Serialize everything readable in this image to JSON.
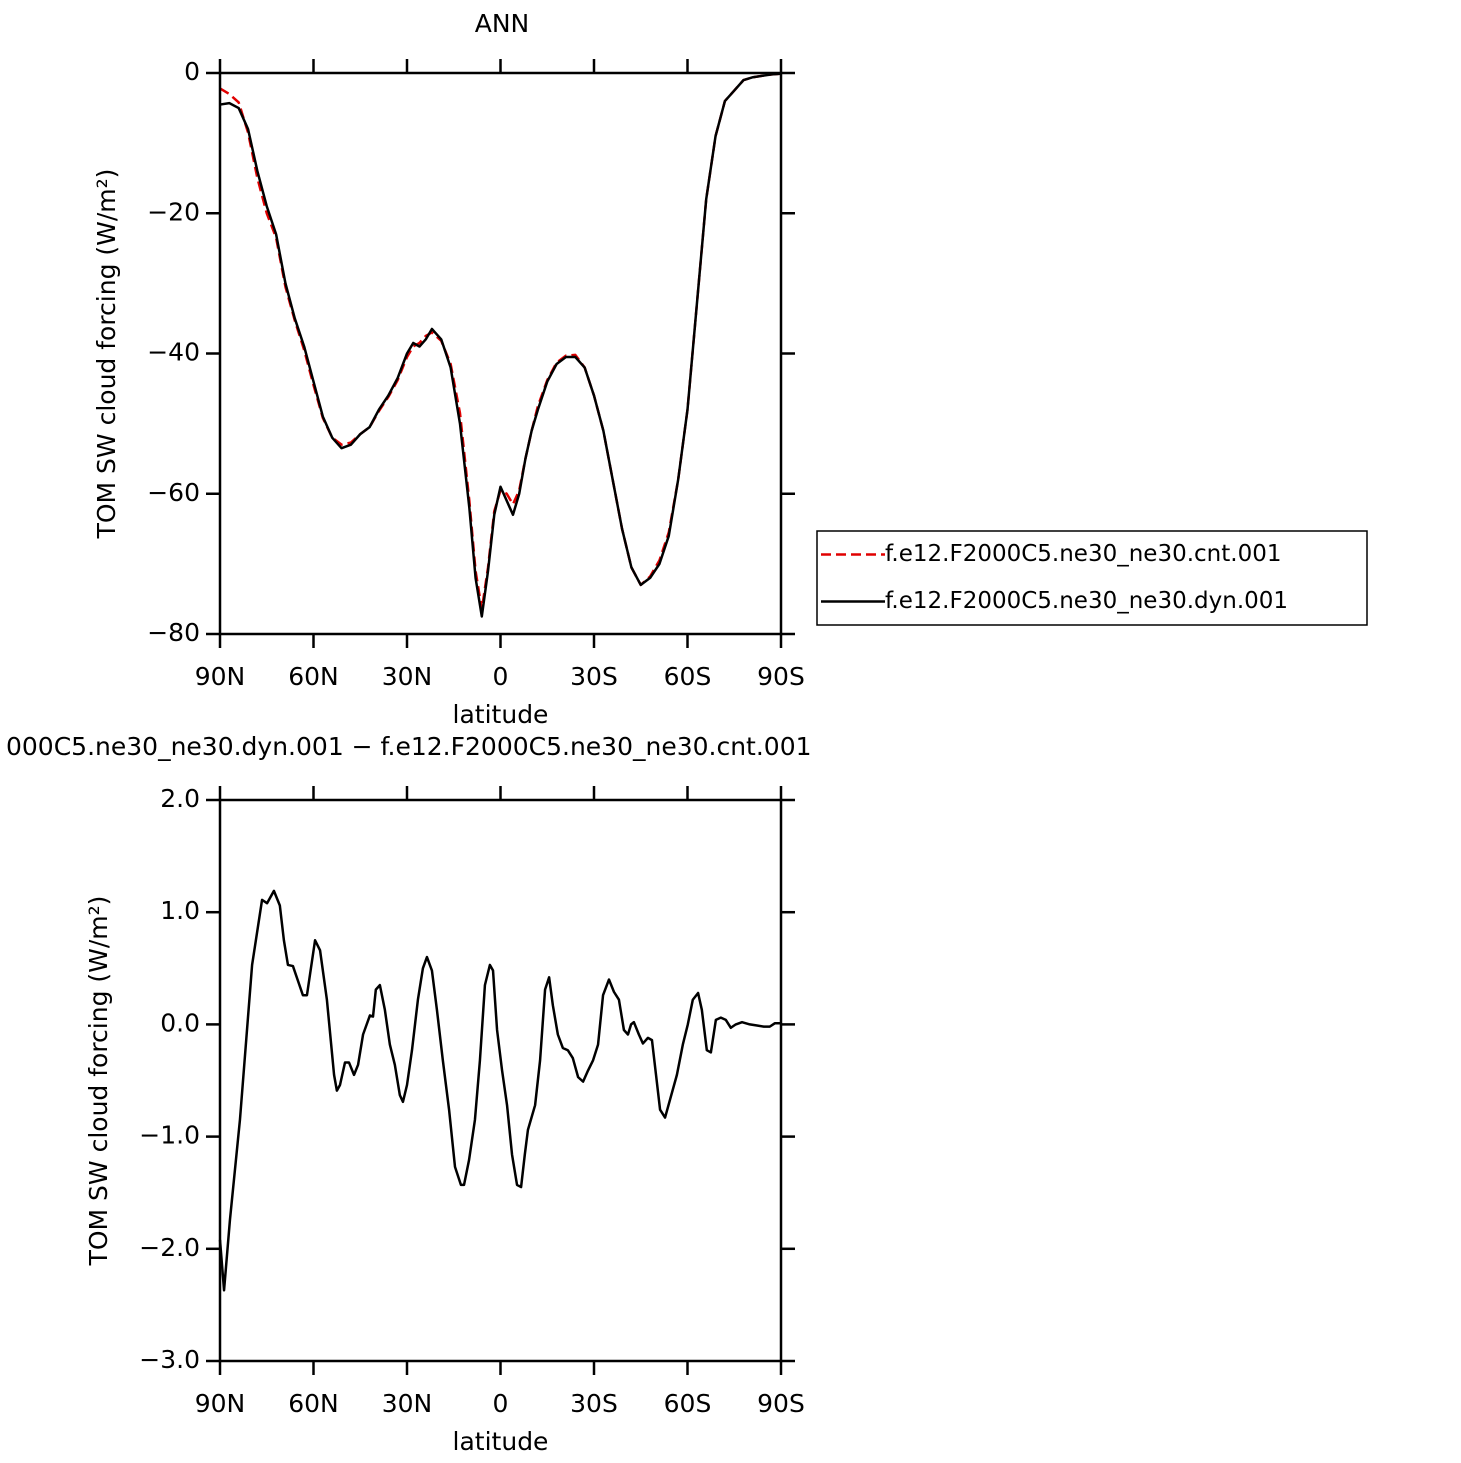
{
  "chart_data": [
    {
      "type": "line",
      "title": "ANN",
      "xlabel": "latitude",
      "ylabel": "TOM SW cloud forcing (W/m²)",
      "xlim": [
        90,
        -90
      ],
      "ylim": [
        -80,
        0
      ],
      "xticks": [
        {
          "value": 90,
          "label": "90N"
        },
        {
          "value": 60,
          "label": "60N"
        },
        {
          "value": 30,
          "label": "30N"
        },
        0,
        {
          "value": -30,
          "label": "30S"
        },
        {
          "value": -60,
          "label": "60S"
        },
        {
          "value": -90,
          "label": "90S"
        }
      ],
      "yticks": [
        0,
        {
          "value": -20,
          "label": "−20"
        },
        {
          "value": -40,
          "label": "−40"
        },
        {
          "value": -60,
          "label": "−60"
        },
        {
          "value": -80,
          "label": "−80"
        }
      ],
      "legend": "right",
      "x": [
        90,
        87,
        84,
        81,
        78,
        75,
        72,
        69,
        66,
        63,
        60,
        57,
        54,
        51,
        48,
        45,
        42,
        39,
        36,
        33,
        30,
        28,
        26,
        24,
        22,
        19,
        16,
        13,
        10,
        8,
        6,
        4,
        2,
        0,
        -2,
        -4,
        -6,
        -8,
        -10,
        -12,
        -15,
        -18,
        -21,
        -24,
        -27,
        -30,
        -33,
        -36,
        -39,
        -42,
        -45,
        -48,
        -51,
        -54,
        -57,
        -60,
        -63,
        -66,
        -69,
        -72,
        -75,
        -78,
        -81,
        -84,
        -87,
        -90
      ],
      "series": [
        {
          "name": "f.e12.F2000C5.ne30_ne30.cnt.001",
          "color": "#e00000",
          "dash": true,
          "values": [
            -2.2,
            -3,
            -4.2,
            -8.5,
            -15,
            -20,
            -23.5,
            -30.5,
            -35.3,
            -39.5,
            -44.5,
            -49.2,
            -52,
            -53,
            -52.7,
            -51.5,
            -50.5,
            -48.2,
            -46.2,
            -43.8,
            -40.5,
            -39,
            -38.5,
            -37.5,
            -37,
            -38.2,
            -41.5,
            -48.5,
            -61,
            -71,
            -76.5,
            -70.5,
            -62.5,
            -59.5,
            -60,
            -61.5,
            -59.5,
            -55,
            -51,
            -47.5,
            -43.8,
            -41.3,
            -40.3,
            -40.2,
            -42,
            -46,
            -51,
            -58,
            -65,
            -70.5,
            -73,
            -71.8,
            -69.5,
            -65.5,
            -58,
            -48,
            -33,
            -18,
            -9,
            -4,
            -2.5,
            -1,
            -0.6,
            -0.4,
            -0.2,
            -0.1
          ]
        },
        {
          "name": "f.e12.F2000C5.ne30_ne30.dyn.001",
          "color": "#000000",
          "dash": false,
          "values": [
            -4.5,
            -4.3,
            -5,
            -8,
            -14,
            -19,
            -23,
            -30,
            -35,
            -39,
            -44,
            -49,
            -52,
            -53.5,
            -53,
            -51.5,
            -50.5,
            -48,
            -46,
            -43.5,
            -40,
            -38.5,
            -39,
            -38,
            -36.5,
            -38,
            -42,
            -50,
            -62,
            -72,
            -77.5,
            -71,
            -63,
            -59,
            -61,
            -63,
            -60,
            -55,
            -51,
            -48,
            -44,
            -41.5,
            -40.5,
            -40.5,
            -42,
            -46,
            -51,
            -58,
            -65,
            -70.5,
            -73,
            -72,
            -70,
            -66,
            -58,
            -48,
            -33,
            -18,
            -9,
            -4,
            -2.5,
            -1,
            -0.6,
            -0.4,
            -0.2,
            -0.1
          ]
        }
      ]
    },
    {
      "type": "line",
      "title": "000C5.ne30_ne30.dyn.001 − f.e12.F2000C5.ne30_ne30.cnt.001",
      "xlabel": "latitude",
      "ylabel": "TOM SW cloud forcing (W/m²)",
      "xlim": [
        90,
        -90
      ],
      "ylim": [
        -3,
        2
      ],
      "xticks": [
        {
          "value": 90,
          "label": "90N"
        },
        {
          "value": 60,
          "label": "60N"
        },
        {
          "value": 30,
          "label": "30N"
        },
        0,
        {
          "value": -30,
          "label": "30S"
        },
        {
          "value": -60,
          "label": "60S"
        },
        {
          "value": -90,
          "label": "90S"
        }
      ],
      "yticks": [
        {
          "value": 2,
          "label": "2.0"
        },
        {
          "value": 1,
          "label": "1.0"
        },
        {
          "value": 0,
          "label": "0.0"
        },
        {
          "value": -1,
          "label": "−1.0"
        },
        {
          "value": -2,
          "label": "−2.0"
        },
        {
          "value": -3,
          "label": "−3.0"
        }
      ],
      "x": [
        90,
        88.7,
        86.8,
        83.6,
        79.7,
        76.5,
        74.9,
        72.7,
        70.8,
        69.5,
        68.2,
        66.6,
        63.4,
        62.1,
        59.5,
        57.9,
        55.7,
        53.4,
        52.5,
        51.5,
        49.9,
        48.6,
        47,
        45.7,
        44.1,
        41.9,
        40.9,
        40,
        38.7,
        37.1,
        35.5,
        33.9,
        32.3,
        31.3,
        30,
        28.4,
        26.5,
        24.9,
        23.6,
        22,
        20.4,
        18.5,
        16.5,
        14.6,
        12.7,
        11.7,
        10.1,
        8.2,
        6.6,
        5,
        3.4,
        2.4,
        1.1,
        -0.5,
        -2.1,
        -3.7,
        -5.3,
        -6.6,
        -7.8,
        -8.8,
        -11.1,
        -12.7,
        -14.3,
        -15.6,
        -16.8,
        -18.4,
        -20,
        -21.6,
        -23.2,
        -24.9,
        -26.5,
        -28.1,
        -29.7,
        -31.3,
        -32.9,
        -34.8,
        -36.4,
        -38,
        -39.6,
        -40.9,
        -41.9,
        -42.8,
        -44.4,
        -45.7,
        -47.3,
        -48.6,
        -49.9,
        -51.2,
        -52.8,
        -54.4,
        -56.6,
        -58.5,
        -60.1,
        -61.7,
        -63.4,
        -64.6,
        -66.2,
        -67.5,
        -69.1,
        -70.7,
        -72.3,
        -73.9,
        -75.5,
        -77.5,
        -80,
        -82.3,
        -84.5,
        -86.4,
        -88,
        -90
      ],
      "series": [
        {
          "color": "#000000",
          "dash": false,
          "values": [
            -1.92,
            -2.37,
            -1.74,
            -0.85,
            0.53,
            1.11,
            1.08,
            1.19,
            1.06,
            0.75,
            0.53,
            0.52,
            0.26,
            0.26,
            0.75,
            0.66,
            0.22,
            -0.45,
            -0.59,
            -0.54,
            -0.34,
            -0.34,
            -0.45,
            -0.36,
            -0.09,
            0.08,
            0.07,
            0.31,
            0.35,
            0.13,
            -0.18,
            -0.36,
            -0.63,
            -0.69,
            -0.54,
            -0.23,
            0.22,
            0.5,
            0.6,
            0.48,
            0.13,
            -0.32,
            -0.76,
            -1.27,
            -1.43,
            -1.43,
            -1.21,
            -0.85,
            -0.32,
            0.35,
            0.53,
            0.48,
            -0.05,
            -0.41,
            -0.72,
            -1.16,
            -1.43,
            -1.45,
            -1.16,
            -0.94,
            -0.72,
            -0.32,
            0.31,
            0.42,
            0.17,
            -0.09,
            -0.21,
            -0.23,
            -0.3,
            -0.47,
            -0.51,
            -0.41,
            -0.32,
            -0.18,
            0.26,
            0.4,
            0.29,
            0.22,
            -0.05,
            -0.09,
            0,
            0.02,
            -0.09,
            -0.17,
            -0.12,
            -0.14,
            -0.45,
            -0.76,
            -0.83,
            -0.67,
            -0.45,
            -0.18,
            0,
            0.22,
            0.28,
            0.13,
            -0.23,
            -0.25,
            0.04,
            0.06,
            0.04,
            -0.03,
            0,
            0.02,
            0,
            -0.01,
            -0.02,
            -0.02,
            0.01,
            0.01
          ]
        }
      ]
    }
  ]
}
